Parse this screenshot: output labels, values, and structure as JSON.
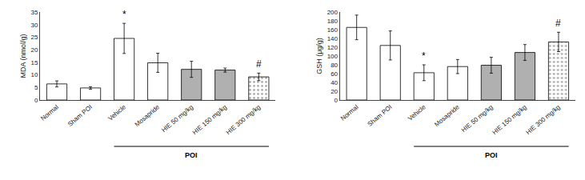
{
  "chart_data": [
    {
      "type": "bar",
      "categories": [
        "Normal",
        "Sham POI",
        "Vehicle",
        "Mosapride",
        "HIE 50 mg/kg",
        "HIE 150 mg/kg",
        "HIE 300 mg/kg"
      ],
      "values": [
        6.4,
        4.8,
        24.5,
        14.8,
        12.2,
        11.9,
        9.2
      ],
      "errors": [
        1.2,
        0.5,
        6.0,
        3.8,
        3.2,
        0.8,
        1.5
      ],
      "ylabel": "MDA (nmol/g)",
      "ylim": [
        0,
        35
      ],
      "yticks": [
        0,
        5,
        10,
        15,
        20,
        25,
        30,
        35
      ],
      "colors": [
        "white",
        "white",
        "white",
        "white",
        "#b0b0b0",
        "#b0b0b0",
        "#b0b0b0"
      ],
      "grid": false,
      "annotations": [
        {
          "text": "*",
          "category": "Vehicle"
        },
        {
          "text": "#",
          "category": "HIE 300 mg/kg"
        },
        {
          "text": "POI",
          "from": "Vehicle",
          "to": "HIE 300 mg/kg"
        }
      ]
    },
    {
      "type": "bar",
      "categories": [
        "Normal",
        "Sham POI",
        "Vehicle",
        "Mosapride",
        "HIE 50 mg/kg",
        "HIE 150 mg/kg",
        "HIE 300 mg/kg"
      ],
      "values": [
        165,
        124,
        62,
        76,
        79,
        108,
        132
      ],
      "errors": [
        28,
        33,
        18,
        16,
        18,
        18,
        22
      ],
      "ylabel": "GSH (μg/g)",
      "ylim": [
        0,
        200
      ],
      "yticks": [
        0,
        20,
        40,
        60,
        80,
        100,
        120,
        140,
        160,
        180,
        200
      ],
      "colors": [
        "white",
        "white",
        "white",
        "white",
        "#b0b0b0",
        "#b0b0b0",
        "#b0b0b0"
      ],
      "grid": false,
      "annotations": [
        {
          "text": "*",
          "category": "Vehicle"
        },
        {
          "text": "#",
          "category": "HIE 300 mg/kg"
        },
        {
          "text": "POI",
          "from": "Vehicle",
          "to": "HIE 300 mg/kg"
        }
      ]
    }
  ]
}
